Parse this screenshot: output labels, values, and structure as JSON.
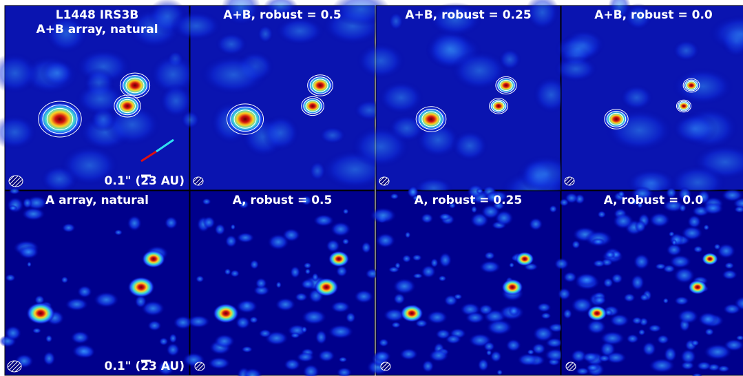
{
  "panels": [
    {
      "name": "L1448 IRS3B",
      "title": "A+B array, natural",
      "scale_label": "0.1\" (23 AU)"
    },
    {
      "title": "A+B, robust = 0.5"
    },
    {
      "title": "A+B, robust = 0.25"
    },
    {
      "title": "A+B, robust = 0.0"
    },
    {
      "title": "A array, natural",
      "scale_label": "0.1\" (23 AU)"
    },
    {
      "title": "A, robust = 0.5"
    },
    {
      "title": "A, robust = 0.25"
    },
    {
      "title": "A, robust = 0.0"
    }
  ]
}
